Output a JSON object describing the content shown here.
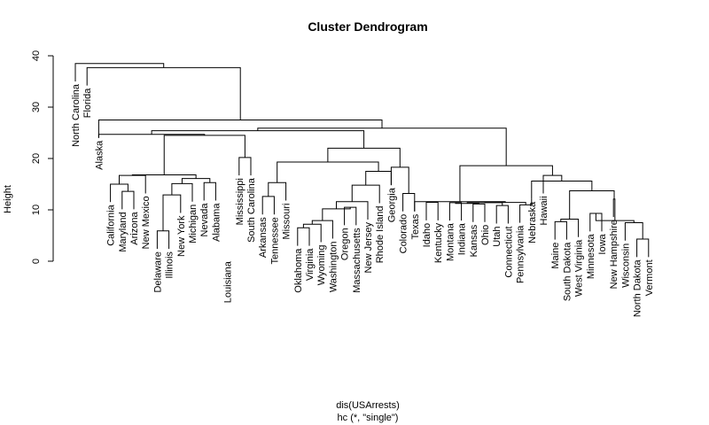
{
  "chart_data": {
    "type": "dendrogram",
    "title": "Cluster Dendrogram",
    "ylabel": "Height",
    "xlabel": "dis(USArrests)",
    "sub": "hc (*, \"single\")",
    "ylim": [
      0,
      40
    ],
    "yticks": [
      "0",
      "10",
      "20",
      "30",
      "40"
    ],
    "leaves": [
      "North Carolina",
      "Florida",
      "Alaska",
      "California",
      "Maryland",
      "Arizona",
      "New Mexico",
      "Delaware",
      "Illinois",
      "New York",
      "Michigan",
      "Nevada",
      "Alabama",
      "Louisiana",
      "Mississippi",
      "South Carolina",
      "Arkansas",
      "Tennessee",
      "Missouri",
      "Oklahoma",
      "Virginia",
      "Wyoming",
      "Washington",
      "Oregon",
      "Massachusetts",
      "New Jersey",
      "Rhode Island",
      "Georgia",
      "Colorado",
      "Texas",
      "Idaho",
      "Kentucky",
      "Montana",
      "Indiana",
      "Kansas",
      "Ohio",
      "Utah",
      "Connecticut",
      "Pennsylvania",
      "Nebraska",
      "Hawaii",
      "Maine",
      "South Dakota",
      "West Virginia",
      "Minnesota",
      "Iowa",
      "New Hampshire",
      "Wisconsin",
      "North Dakota",
      "Vermont"
    ],
    "merges": [
      {
        "a": "L30",
        "b": "L31",
        "h": 11.46
      },
      {
        "a": "L32",
        "b": "L33",
        "h": 11.4
      },
      {
        "a": "L34",
        "b": "L35",
        "h": 11.14
      },
      {
        "a": "L36",
        "b": "L37",
        "h": 10.83
      },
      {
        "a": "L38",
        "b": "L39",
        "h": 10.98
      },
      {
        "a": "N2",
        "b": "N3",
        "h": 11.25
      },
      {
        "a": "N6",
        "b": "N4",
        "h": 11.4
      },
      {
        "a": "N5",
        "b": "N7",
        "h": 11.45
      },
      {
        "a": "L29",
        "b": "N8",
        "h": 11.6
      },
      {
        "a": "L44",
        "b": "L45",
        "h": 9.3
      },
      {
        "a": "L48",
        "b": "L49",
        "h": 4.3
      },
      {
        "a": "L47",
        "b": "N11",
        "h": 7.5
      },
      {
        "a": "N10",
        "b": "N12",
        "h": 7.9
      },
      {
        "a": "L46",
        "b": "N13",
        "h": 12.1
      },
      {
        "a": "L41",
        "b": "L42",
        "h": 7.7
      },
      {
        "a": "N15",
        "b": "L43",
        "h": 8.2
      },
      {
        "a": "N16",
        "b": "N14",
        "h": 13.7
      },
      {
        "a": "L39",
        "b": "N17",
        "h": 15.6
      },
      {
        "a": "N18",
        "b": "L40",
        "h": 16.7
      },
      {
        "a": "N9",
        "b": "N19",
        "h": 18.6
      },
      {
        "a": "L19",
        "b": "L20",
        "h": 6.5
      },
      {
        "a": "N21",
        "b": "L21",
        "h": 7.2
      },
      {
        "a": "N22",
        "b": "L22",
        "h": 7.9
      },
      {
        "a": "L23",
        "b": "L24",
        "h": 10.5
      },
      {
        "a": "N23",
        "b": "N24",
        "h": 10.2
      },
      {
        "a": "N25",
        "b": "L25",
        "h": 11.6
      },
      {
        "a": "L26",
        "b": "N26",
        "h": 14.8
      },
      {
        "a": "N27",
        "b": "L27",
        "h": 17.5
      },
      {
        "a": "L16",
        "b": "L17",
        "h": 12.6
      },
      {
        "a": "N29",
        "b": "L18",
        "h": 15.3
      },
      {
        "a": "N30",
        "b": "N28",
        "h": 19.3
      },
      {
        "a": "L28",
        "b": "L29",
        "h": 13.2
      },
      {
        "a": "L27",
        "b": "N32",
        "h": 18.3
      },
      {
        "a": "N31",
        "b": "N33",
        "h": 22.0
      },
      {
        "a": "L4",
        "b": "L5",
        "h": 13.6
      },
      {
        "a": "L3",
        "b": "N35",
        "h": 15.0
      },
      {
        "a": "N36",
        "b": "L6",
        "h": 16.7
      },
      {
        "a": "L7",
        "b": "L8",
        "h": 5.9
      },
      {
        "a": "N38",
        "b": "L9",
        "h": 12.9
      },
      {
        "a": "N39",
        "b": "L10",
        "h": 15.1
      },
      {
        "a": "L11",
        "b": "L12",
        "h": 15.3
      },
      {
        "a": "N40",
        "b": "N41",
        "h": 16.1
      },
      {
        "a": "N37",
        "b": "N42",
        "h": 16.8
      },
      {
        "a": "L14",
        "b": "L15",
        "h": 20.2
      },
      {
        "a": "N43",
        "b": "N44",
        "h": 24.5
      },
      {
        "a": "L2",
        "b": "N45",
        "h": 24.7
      },
      {
        "a": "N46",
        "b": "N34",
        "h": 25.4
      },
      {
        "a": "N47",
        "b": "N20",
        "h": 25.9
      },
      {
        "a": "N48",
        "b": "L2",
        "h": 27.5
      },
      {
        "a": "L1",
        "b": "N49",
        "h": 37.7
      },
      {
        "a": "L0",
        "b": "N50",
        "h": 38.5
      }
    ]
  }
}
